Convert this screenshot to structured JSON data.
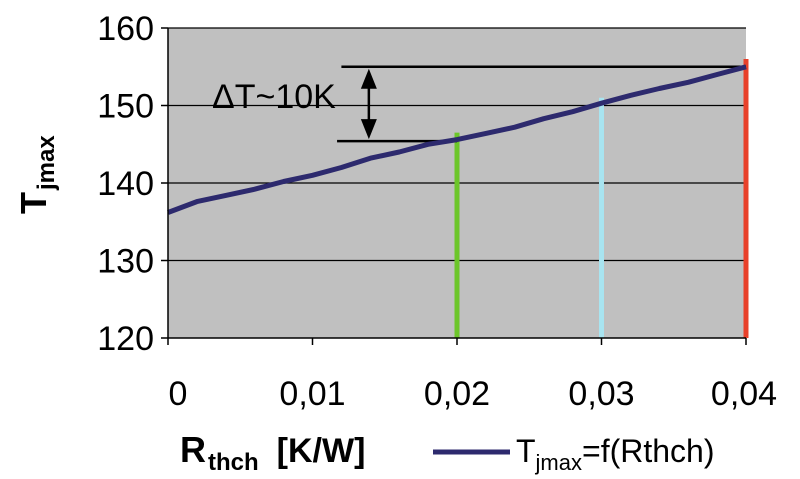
{
  "chart_data": {
    "type": "line",
    "title": "",
    "ylabel": {
      "main": "T",
      "sub": "jmax"
    },
    "xlabel": {
      "main": "R",
      "sub": "thch",
      "unit": "[K/W]"
    },
    "xlim": [
      0,
      0.04
    ],
    "ylim": [
      120,
      160
    ],
    "x_ticks": [
      {
        "value": 0,
        "label": "0"
      },
      {
        "value": 0.01,
        "label": "0,01"
      },
      {
        "value": 0.02,
        "label": "0,02"
      },
      {
        "value": 0.03,
        "label": "0,03"
      },
      {
        "value": 0.04,
        "label": "0,04"
      }
    ],
    "y_ticks": [
      {
        "value": 120,
        "label": "120"
      },
      {
        "value": 130,
        "label": "130"
      },
      {
        "value": 140,
        "label": "140"
      },
      {
        "value": 150,
        "label": "150"
      },
      {
        "value": 160,
        "label": "160"
      }
    ],
    "grid": {
      "horizontal": true,
      "vertical": false
    },
    "plot_background": "#c0c0c0",
    "series": [
      {
        "legend": {
          "main": "T",
          "sub": "jmax",
          "rest": "=f(Rthch)"
        },
        "color": "#2d2a6e",
        "x": [
          0,
          0.002,
          0.004,
          0.006,
          0.008,
          0.01,
          0.012,
          0.014,
          0.016,
          0.018,
          0.02,
          0.022,
          0.024,
          0.026,
          0.028,
          0.03,
          0.032,
          0.034,
          0.036,
          0.038,
          0.04
        ],
        "y": [
          136.2,
          137.6,
          138.4,
          139.2,
          140.2,
          141.0,
          142.0,
          143.2,
          144.0,
          145.0,
          145.6,
          146.4,
          147.2,
          148.3,
          149.2,
          150.3,
          151.3,
          152.2,
          153.0,
          154.0,
          155.0
        ]
      }
    ],
    "markers": [
      {
        "x": 0.02,
        "y_top": 146.5,
        "color": "#6cc62a"
      },
      {
        "x": 0.03,
        "y_top": 151.0,
        "color": "#a8e4f0"
      },
      {
        "x": 0.04,
        "y_top": 156.0,
        "color": "#e8402a"
      }
    ],
    "annotation": {
      "text": "ΔT~10K",
      "upper_value": 155.0,
      "lower_value": 145.4,
      "upper_line_x": [
        0.012,
        0.04
      ],
      "lower_line_x": [
        0.0117,
        0.02
      ],
      "arrow_x": 0.0139
    }
  }
}
